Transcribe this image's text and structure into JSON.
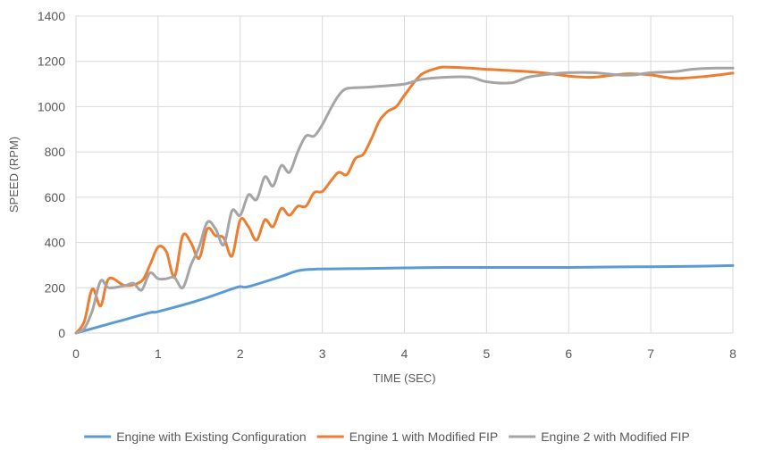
{
  "chart_data": {
    "type": "line",
    "title": "",
    "xlabel": "TIME (SEC)",
    "ylabel": "SPEED (RPM)",
    "xlim": [
      0,
      8
    ],
    "ylim": [
      0,
      1400
    ],
    "x_ticks": [
      0,
      1,
      2,
      3,
      4,
      5,
      6,
      7,
      8
    ],
    "y_ticks": [
      0,
      200,
      400,
      600,
      800,
      1000,
      1200,
      1400
    ],
    "grid": true,
    "legend_position": "bottom",
    "series": [
      {
        "name": "Engine with Existing Configuration",
        "color": "#5b9bd5",
        "points": [
          [
            0,
            0
          ],
          [
            0.2,
            20
          ],
          [
            0.5,
            50
          ],
          [
            0.9,
            90
          ],
          [
            1.0,
            95
          ],
          [
            1.5,
            145
          ],
          [
            1.9,
            195
          ],
          [
            2.0,
            205
          ],
          [
            2.1,
            205
          ],
          [
            2.5,
            250
          ],
          [
            2.7,
            275
          ],
          [
            2.9,
            282
          ],
          [
            3.0,
            283
          ],
          [
            3.5,
            285
          ],
          [
            4.0,
            288
          ],
          [
            4.5,
            290
          ],
          [
            5.0,
            290
          ],
          [
            5.5,
            290
          ],
          [
            6.0,
            290
          ],
          [
            6.5,
            292
          ],
          [
            7.0,
            293
          ],
          [
            7.5,
            295
          ],
          [
            8.0,
            298
          ]
        ]
      },
      {
        "name": "Engine 1 with Modified FIP",
        "color": "#ed7d31",
        "points": [
          [
            0,
            0
          ],
          [
            0.1,
            50
          ],
          [
            0.2,
            195
          ],
          [
            0.3,
            120
          ],
          [
            0.4,
            240
          ],
          [
            0.6,
            210
          ],
          [
            0.8,
            230
          ],
          [
            0.9,
            300
          ],
          [
            1.0,
            380
          ],
          [
            1.1,
            360
          ],
          [
            1.2,
            250
          ],
          [
            1.3,
            430
          ],
          [
            1.4,
            400
          ],
          [
            1.5,
            330
          ],
          [
            1.6,
            460
          ],
          [
            1.7,
            430
          ],
          [
            1.8,
            420
          ],
          [
            1.9,
            340
          ],
          [
            2.0,
            500
          ],
          [
            2.1,
            470
          ],
          [
            2.2,
            410
          ],
          [
            2.3,
            500
          ],
          [
            2.4,
            470
          ],
          [
            2.5,
            550
          ],
          [
            2.6,
            520
          ],
          [
            2.7,
            560
          ],
          [
            2.8,
            560
          ],
          [
            2.9,
            620
          ],
          [
            3.0,
            625
          ],
          [
            3.1,
            670
          ],
          [
            3.2,
            710
          ],
          [
            3.3,
            700
          ],
          [
            3.4,
            770
          ],
          [
            3.5,
            790
          ],
          [
            3.6,
            860
          ],
          [
            3.7,
            940
          ],
          [
            3.8,
            980
          ],
          [
            3.9,
            1000
          ],
          [
            4.0,
            1050
          ],
          [
            4.2,
            1140
          ],
          [
            4.4,
            1170
          ],
          [
            4.5,
            1175
          ],
          [
            4.8,
            1170
          ],
          [
            5.0,
            1165
          ],
          [
            5.5,
            1155
          ],
          [
            5.8,
            1145
          ],
          [
            6.0,
            1135
          ],
          [
            6.3,
            1130
          ],
          [
            6.7,
            1145
          ],
          [
            7.0,
            1140
          ],
          [
            7.3,
            1125
          ],
          [
            7.7,
            1135
          ],
          [
            8.0,
            1148
          ]
        ]
      },
      {
        "name": "Engine 2 with Modified FIP",
        "color": "#a5a5a5",
        "points": [
          [
            0,
            0
          ],
          [
            0.1,
            20
          ],
          [
            0.2,
            100
          ],
          [
            0.3,
            230
          ],
          [
            0.4,
            200
          ],
          [
            0.6,
            210
          ],
          [
            0.7,
            220
          ],
          [
            0.8,
            190
          ],
          [
            0.9,
            265
          ],
          [
            1.0,
            240
          ],
          [
            1.1,
            240
          ],
          [
            1.2,
            245
          ],
          [
            1.3,
            200
          ],
          [
            1.4,
            300
          ],
          [
            1.5,
            380
          ],
          [
            1.6,
            490
          ],
          [
            1.7,
            460
          ],
          [
            1.8,
            390
          ],
          [
            1.9,
            540
          ],
          [
            2.0,
            520
          ],
          [
            2.1,
            610
          ],
          [
            2.2,
            590
          ],
          [
            2.3,
            690
          ],
          [
            2.4,
            650
          ],
          [
            2.5,
            740
          ],
          [
            2.6,
            710
          ],
          [
            2.7,
            800
          ],
          [
            2.8,
            870
          ],
          [
            2.9,
            870
          ],
          [
            3.0,
            920
          ],
          [
            3.1,
            990
          ],
          [
            3.2,
            1050
          ],
          [
            3.3,
            1080
          ],
          [
            3.5,
            1085
          ],
          [
            3.7,
            1090
          ],
          [
            4.0,
            1100
          ],
          [
            4.2,
            1120
          ],
          [
            4.5,
            1130
          ],
          [
            4.8,
            1130
          ],
          [
            5.0,
            1110
          ],
          [
            5.3,
            1105
          ],
          [
            5.5,
            1130
          ],
          [
            5.8,
            1145
          ],
          [
            6.0,
            1150
          ],
          [
            6.3,
            1150
          ],
          [
            6.6,
            1140
          ],
          [
            6.8,
            1140
          ],
          [
            7.0,
            1150
          ],
          [
            7.3,
            1155
          ],
          [
            7.5,
            1165
          ],
          [
            7.8,
            1170
          ],
          [
            8.0,
            1170
          ]
        ]
      }
    ]
  }
}
